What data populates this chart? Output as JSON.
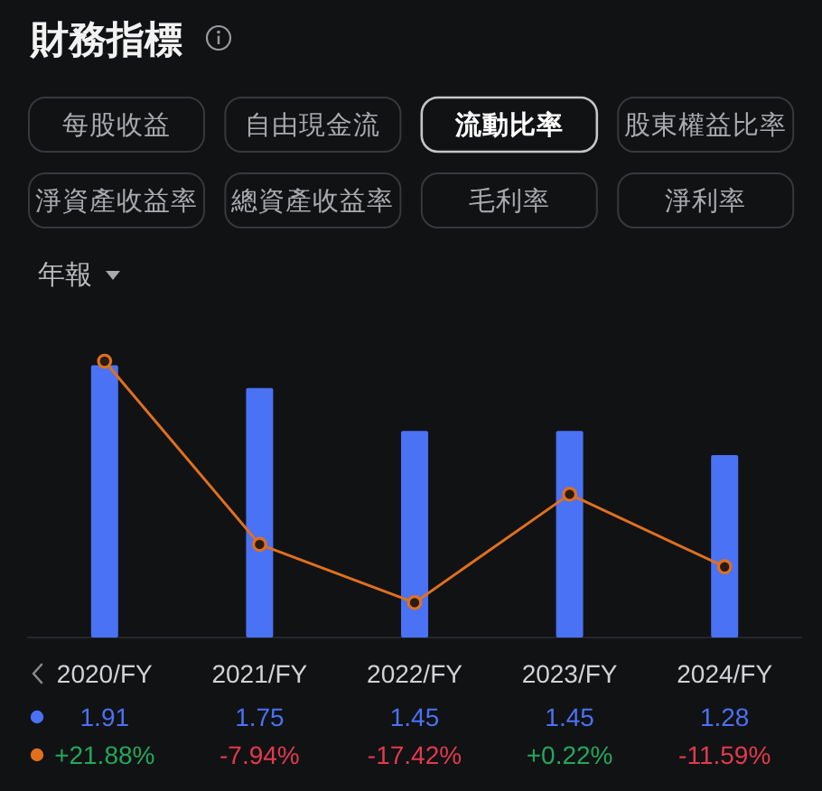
{
  "chart_data": {
    "type": "bar",
    "title": "財務指標",
    "subtitle": "流動比率",
    "annotations": [
      "每股收益",
      "自由現金流",
      "股東權益比率",
      "淨資產收益率",
      "總資產收益率",
      "毛利率",
      "淨利率",
      "年報"
    ],
    "categories": [
      "2020/FY",
      "2021/FY",
      "2022/FY",
      "2023/FY",
      "2024/FY"
    ],
    "series": [
      {
        "color": "#4a72f5",
        "values": [
          1.91,
          1.75,
          1.45,
          1.45,
          1.28
        ],
        "value_labels": [
          "1.91",
          "1.75",
          "1.45",
          "1.45",
          "1.28"
        ]
      },
      {
        "type": "line",
        "axis": "y2",
        "color": "#e0701e",
        "values": [
          21.88,
          -7.94,
          -17.42,
          0.22,
          -11.59
        ],
        "value_labels": [
          "+21.88%",
          "-7.94%",
          "-17.42%",
          "+0.22%",
          "-11.59%"
        ]
      }
    ],
    "tick_labels": "x",
    "marker": "circle",
    "line_style": "solid"
  }
}
